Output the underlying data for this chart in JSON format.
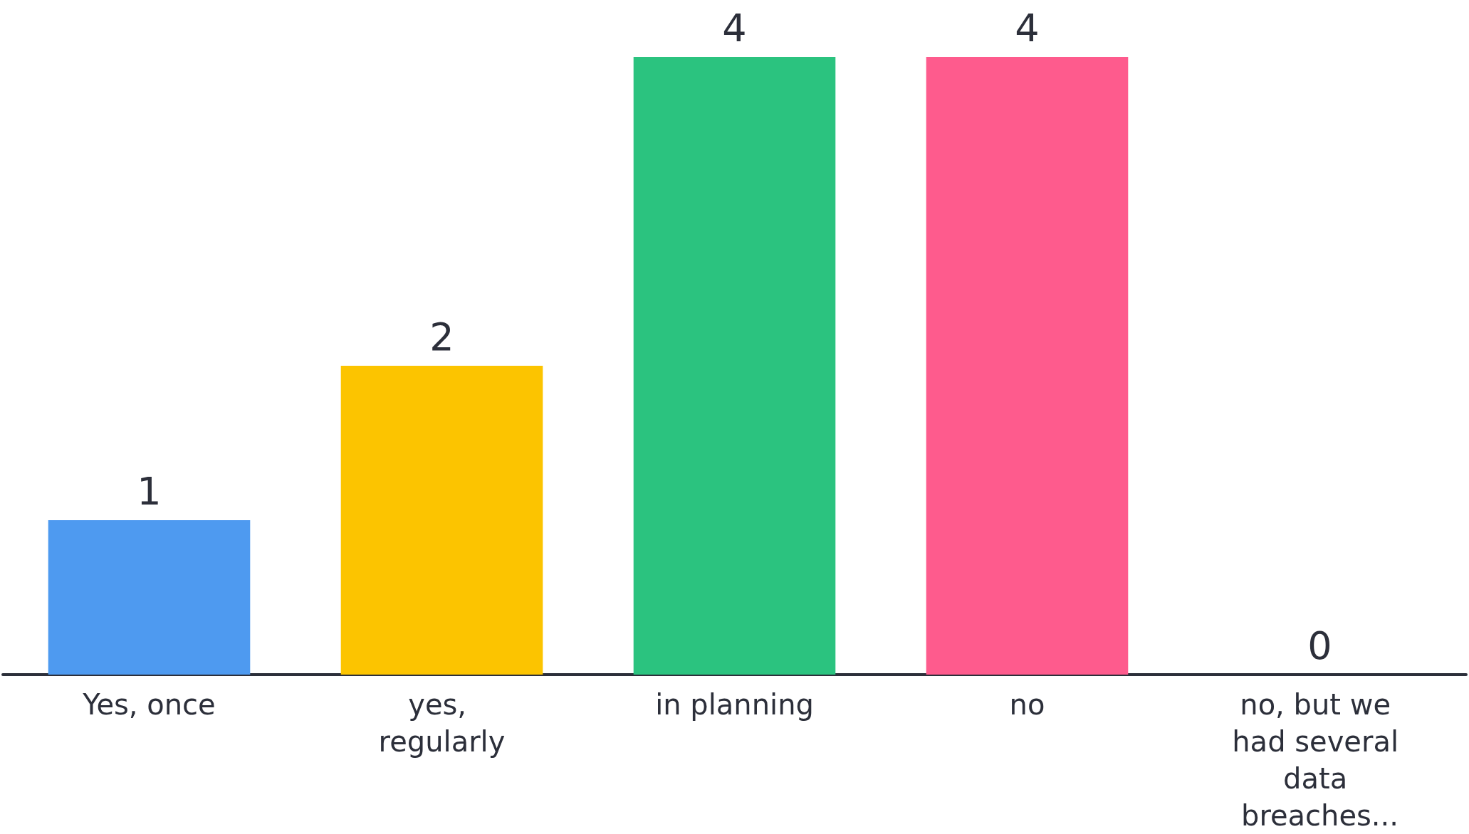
{
  "chart_data": {
    "type": "bar",
    "categories": [
      "Yes, once",
      "yes, regularly",
      "in planning",
      "no",
      "no, but we had several data breaches..."
    ],
    "values": [
      1,
      2,
      4,
      4,
      0
    ],
    "colors": [
      "#4e9af0",
      "#fcc400",
      "#2bc37f",
      "#fe5b8d",
      "#8e8e8e"
    ],
    "data_labels": true,
    "grid": false,
    "tick_labels": "x"
  }
}
